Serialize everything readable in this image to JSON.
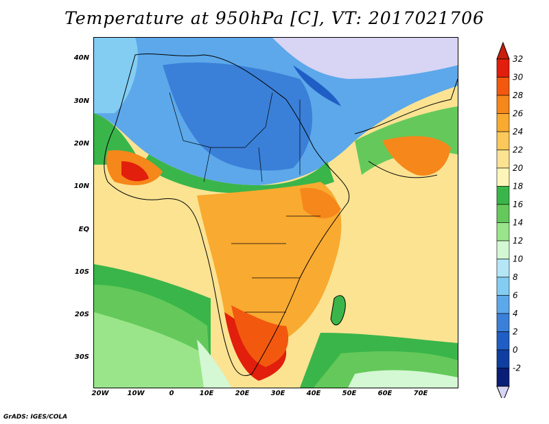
{
  "title": "Temperature at 950hPa [C], VT: 2017021706",
  "credit": "GrADS: IGES/COLA",
  "lat_labels": [
    "40N",
    "30N",
    "20N",
    "10N",
    "EQ",
    "10S",
    "20S",
    "30S"
  ],
  "lon_labels": [
    "20W",
    "10W",
    "0",
    "10E",
    "20E",
    "30E",
    "40E",
    "50E",
    "60E",
    "70E"
  ],
  "colorbar": {
    "levels": [
      "32",
      "30",
      "28",
      "26",
      "24",
      "22",
      "20",
      "18",
      "16",
      "14",
      "12",
      "10",
      "8",
      "6",
      "4",
      "2",
      "0",
      "-2"
    ],
    "colors": [
      "#e21e0c",
      "#f2590f",
      "#f6871a",
      "#f9aa30",
      "#fbc859",
      "#fbe392",
      "#fef6b9",
      "#3ab54a",
      "#64c95a",
      "#9ae58a",
      "#d4f7d4",
      "#b4e6f6",
      "#84cdf2",
      "#5ca8ea",
      "#3a80d8",
      "#1f5ec4",
      "#0f3ea0",
      "#0a1e78"
    ],
    "top_arrow_color": "#c81e0c",
    "bottom_arrow_color": "#d8d4f4"
  }
}
